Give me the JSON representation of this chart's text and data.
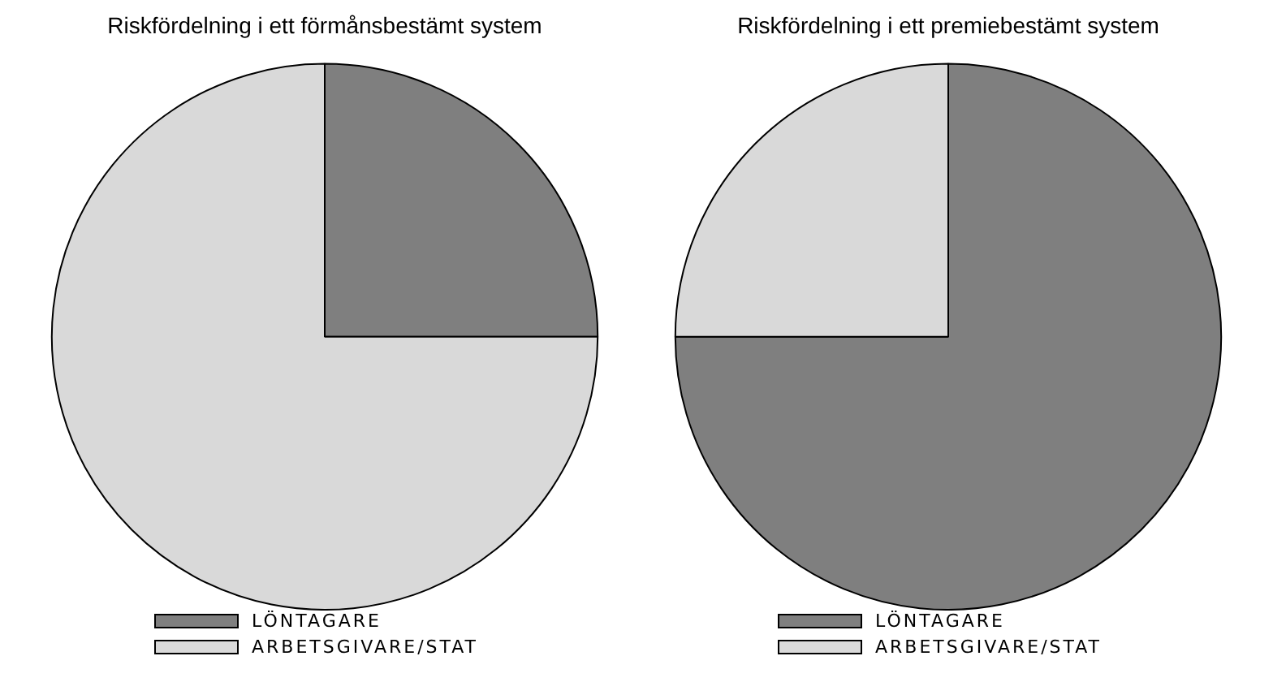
{
  "chart_data": [
    {
      "type": "pie",
      "title": "Riskfördelning i ett förmånsbestämt system",
      "categories": [
        "LÖNTAGARE",
        "ARBETSGIVARE/STAT"
      ],
      "values": [
        25,
        75
      ],
      "colors": [
        "#7f7f7f",
        "#d9d9d9"
      ],
      "legend": "bottom"
    },
    {
      "type": "pie",
      "title": "Riskfördelning i ett premiebestämt system",
      "categories": [
        "LÖNTAGARE",
        "ARBETSGIVARE/STAT"
      ],
      "values": [
        75,
        25
      ],
      "colors": [
        "#7f7f7f",
        "#d9d9d9"
      ],
      "legend": "bottom"
    }
  ]
}
